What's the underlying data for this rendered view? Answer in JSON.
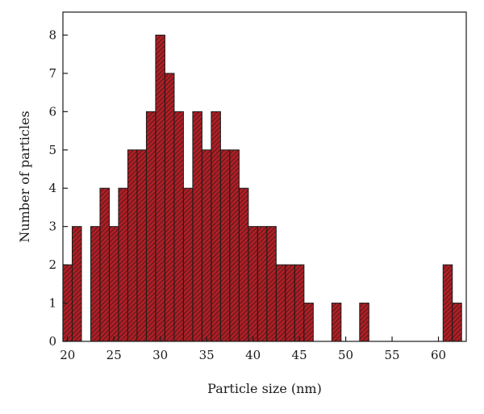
{
  "chart_data": {
    "type": "bar",
    "title": "",
    "xlabel": "Particle size (nm)",
    "ylabel": "Number of particles",
    "bin_width": 1,
    "x": [
      20,
      21,
      22,
      23,
      24,
      25,
      26,
      27,
      28,
      29,
      30,
      31,
      32,
      33,
      34,
      35,
      36,
      37,
      38,
      39,
      40,
      41,
      42,
      43,
      44,
      45,
      46,
      47,
      48,
      49,
      50,
      51,
      52,
      53,
      54,
      55,
      56,
      57,
      58,
      59,
      60,
      61,
      62
    ],
    "values": [
      2,
      3,
      0,
      3,
      4,
      3,
      4,
      5,
      5,
      6,
      8,
      7,
      6,
      4,
      6,
      5,
      6,
      5,
      5,
      4,
      3,
      3,
      3,
      2,
      2,
      2,
      1,
      0,
      0,
      1,
      0,
      0,
      1,
      0,
      0,
      0,
      0,
      0,
      0,
      0,
      0,
      2,
      1
    ],
    "xlim": [
      19.5,
      63
    ],
    "ylim": [
      0,
      8.6
    ],
    "xticks": [
      20,
      25,
      30,
      35,
      40,
      45,
      50,
      55,
      60
    ],
    "yticks": [
      0,
      1,
      2,
      3,
      4,
      5,
      6,
      7,
      8
    ],
    "grid": false,
    "legend": "none",
    "colors": {
      "bar_fill": "#b01e24",
      "bar_hatch": "#1a1a1a",
      "axis": "#1a1a1a"
    }
  }
}
